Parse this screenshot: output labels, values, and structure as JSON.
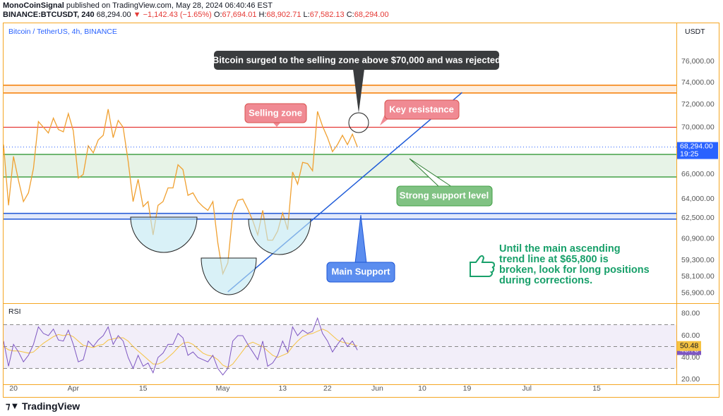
{
  "header": {
    "publisher": "MonoCoinSignal",
    "published": "published on TradingView.com, May 28, 2024 06:40:46 EST",
    "symbol": "BINANCE:BTCUSDT, 240",
    "last": "68,294.00",
    "change": "▼ −1,142.43 (−1.65%)",
    "ohlc": [
      {
        "key": "O:",
        "value": "67,694.01"
      },
      {
        "key": "H:",
        "value": "68,902.71"
      },
      {
        "key": "L:",
        "value": "67,582.13"
      },
      {
        "key": "C:",
        "value": "68,294.00"
      }
    ]
  },
  "footer": "TradingView",
  "chart_data": [
    {
      "type": "line",
      "title": "Bitcoin / TetherUS, 4h, BINANCE",
      "unit": "USDT",
      "log": true,
      "color": "#f0a030",
      "x": [
        "2024-03-18",
        "2024-03-19",
        "2024-03-20",
        "2024-03-21",
        "2024-03-22",
        "2024-03-23",
        "2024-03-24",
        "2024-03-25",
        "2024-03-26",
        "2024-03-27",
        "2024-03-28",
        "2024-03-29",
        "2024-03-30",
        "2024-03-31",
        "2024-04-01",
        "2024-04-02",
        "2024-04-03",
        "2024-04-04",
        "2024-04-05",
        "2024-04-06",
        "2024-04-07",
        "2024-04-08",
        "2024-04-09",
        "2024-04-10",
        "2024-04-11",
        "2024-04-12",
        "2024-04-13",
        "2024-04-14",
        "2024-04-15",
        "2024-04-16",
        "2024-04-17",
        "2024-04-18",
        "2024-04-19",
        "2024-04-20",
        "2024-04-21",
        "2024-04-22",
        "2024-04-23",
        "2024-04-24",
        "2024-04-25",
        "2024-04-26",
        "2024-04-27",
        "2024-04-28",
        "2024-04-29",
        "2024-04-30",
        "2024-05-01",
        "2024-05-02",
        "2024-05-03",
        "2024-05-04",
        "2024-05-05",
        "2024-05-06",
        "2024-05-07",
        "2024-05-08",
        "2024-05-09",
        "2024-05-10",
        "2024-05-11",
        "2024-05-12",
        "2024-05-13",
        "2024-05-14",
        "2024-05-15",
        "2024-05-16",
        "2024-05-17",
        "2024-05-18",
        "2024-05-19",
        "2024-05-20",
        "2024-05-21",
        "2024-05-22",
        "2024-05-23",
        "2024-05-24",
        "2024-05-25",
        "2024-05-26",
        "2024-05-27",
        "2024-05-28"
      ],
      "values": [
        68500,
        63500,
        67500,
        65500,
        63800,
        64500,
        66500,
        70500,
        70000,
        69500,
        70800,
        69800,
        69600,
        71200,
        69700,
        65700,
        66000,
        68400,
        67800,
        68900,
        69300,
        71600,
        69100,
        70600,
        70000,
        67100,
        63800,
        65600,
        63400,
        63800,
        61200,
        63500,
        63800,
        64900,
        64900,
        66800,
        66400,
        64300,
        64500,
        63800,
        63400,
        63100,
        63800,
        60600,
        58300,
        59100,
        62900,
        63900,
        64000,
        63200,
        62300,
        61200,
        63100,
        60800,
        60800,
        61500,
        62900,
        61600,
        66200,
        65200,
        67000,
        66900,
        66300,
        71400,
        70100,
        69100,
        67900,
        68500,
        69300,
        68500,
        69400,
        68294
      ],
      "last_label": "68,294.00",
      "countdown": "19:25",
      "xlim": [
        "2024-03-18",
        "2024-07-31"
      ],
      "xticks": [
        {
          "value": "2024-03-20",
          "label": "20"
        },
        {
          "value": "2024-04-01",
          "label": "Apr"
        },
        {
          "value": "2024-04-15",
          "label": "15"
        },
        {
          "value": "2024-05-01",
          "label": "May"
        },
        {
          "value": "2024-05-13",
          "label": "13"
        },
        {
          "value": "2024-05-22",
          "label": "22"
        },
        {
          "value": "2024-06-01",
          "label": "Jun"
        },
        {
          "value": "2024-06-10",
          "label": "10"
        },
        {
          "value": "2024-06-19",
          "label": "19"
        },
        {
          "value": "2024-07-01",
          "label": "Jul"
        },
        {
          "value": "2024-07-15",
          "label": "15"
        }
      ],
      "ylim": [
        56300,
        79700
      ],
      "yticks": [
        {
          "value": 76000,
          "label": "76,000.00"
        },
        {
          "value": 74000,
          "label": "74,000.00"
        },
        {
          "value": 72000,
          "label": "72,000.00"
        },
        {
          "value": 70000,
          "label": "70,000.00"
        },
        {
          "value": 66000,
          "label": "66,000.00"
        },
        {
          "value": 64000,
          "label": "64,000.00"
        },
        {
          "value": 62500,
          "label": "62,500.00"
        },
        {
          "value": 60900,
          "label": "60,900.00"
        },
        {
          "value": 59300,
          "label": "59,300.00"
        },
        {
          "value": 58100,
          "label": "58,100.00"
        },
        {
          "value": 56900,
          "label": "56,900.00"
        }
      ],
      "zones": [
        {
          "range": [
            73060,
            73770
          ],
          "color": "#f57c00"
        },
        {
          "range": [
            65790,
            67670
          ],
          "color": "#43a047"
        },
        {
          "range": [
            62420,
            62870
          ],
          "color": "#1e56d6"
        }
      ],
      "resistance": {
        "value": 70000,
        "color": "#e53935"
      },
      "trendline": {
        "x": [
          "2024-05-02",
          "2024-06-18"
        ],
        "values": [
          57000,
          73100
        ],
        "color": "#1e5bd8"
      },
      "annotations": {
        "rejected": "Bitcoin surged to the selling zone above $70,000 and was rejected",
        "selling_zone": "Selling zone",
        "key_resistance": "Key resistance",
        "support": "Strong support level",
        "main_support": "Main Support",
        "note": [
          "Until the main ascending",
          "trend line at $65,800 is",
          "broken, look for long positions",
          "during corrections."
        ]
      }
    },
    {
      "type": "line",
      "title": "RSI",
      "series": [
        {
          "color": "#7e57c2",
          "values": [
            55,
            32,
            52,
            45,
            36,
            42,
            52,
            68,
            62,
            60,
            66,
            56,
            55,
            65,
            52,
            36,
            38,
            55,
            50,
            56,
            60,
            68,
            52,
            60,
            55,
            40,
            30,
            42,
            32,
            35,
            26,
            40,
            44,
            52,
            52,
            62,
            58,
            42,
            45,
            40,
            38,
            36,
            42,
            30,
            24,
            30,
            55,
            60,
            60,
            52,
            45,
            38,
            55,
            32,
            35,
            42,
            55,
            45,
            68,
            60,
            65,
            62,
            64,
            76,
            62,
            55,
            45,
            52,
            58,
            50,
            55,
            46.78
          ]
        },
        {
          "color": "#f5c342",
          "values": [
            50,
            47,
            46,
            46,
            45,
            44,
            45,
            49,
            53,
            56,
            59,
            61,
            60,
            61,
            59,
            55,
            51,
            50,
            49,
            51,
            52,
            56,
            57,
            58,
            58,
            55,
            50,
            46,
            42,
            38,
            34,
            34,
            36,
            40,
            44,
            49,
            53,
            54,
            52,
            48,
            44,
            42,
            41,
            38,
            33,
            31,
            34,
            40,
            46,
            52,
            54,
            52,
            50,
            46,
            42,
            40,
            42,
            44,
            50,
            55,
            59,
            61,
            62,
            64,
            66,
            64,
            60,
            56,
            54,
            53,
            52,
            50.48
          ]
        }
      ],
      "ylim": [
        15.5,
        87.7
      ],
      "yticks": [
        {
          "value": 80,
          "label": "80.00"
        },
        {
          "value": 60,
          "label": "60.00"
        },
        {
          "value": 40,
          "label": "40.00"
        },
        {
          "value": 20,
          "label": "20.00"
        }
      ],
      "levels": [
        70,
        50,
        30
      ]
    }
  ]
}
